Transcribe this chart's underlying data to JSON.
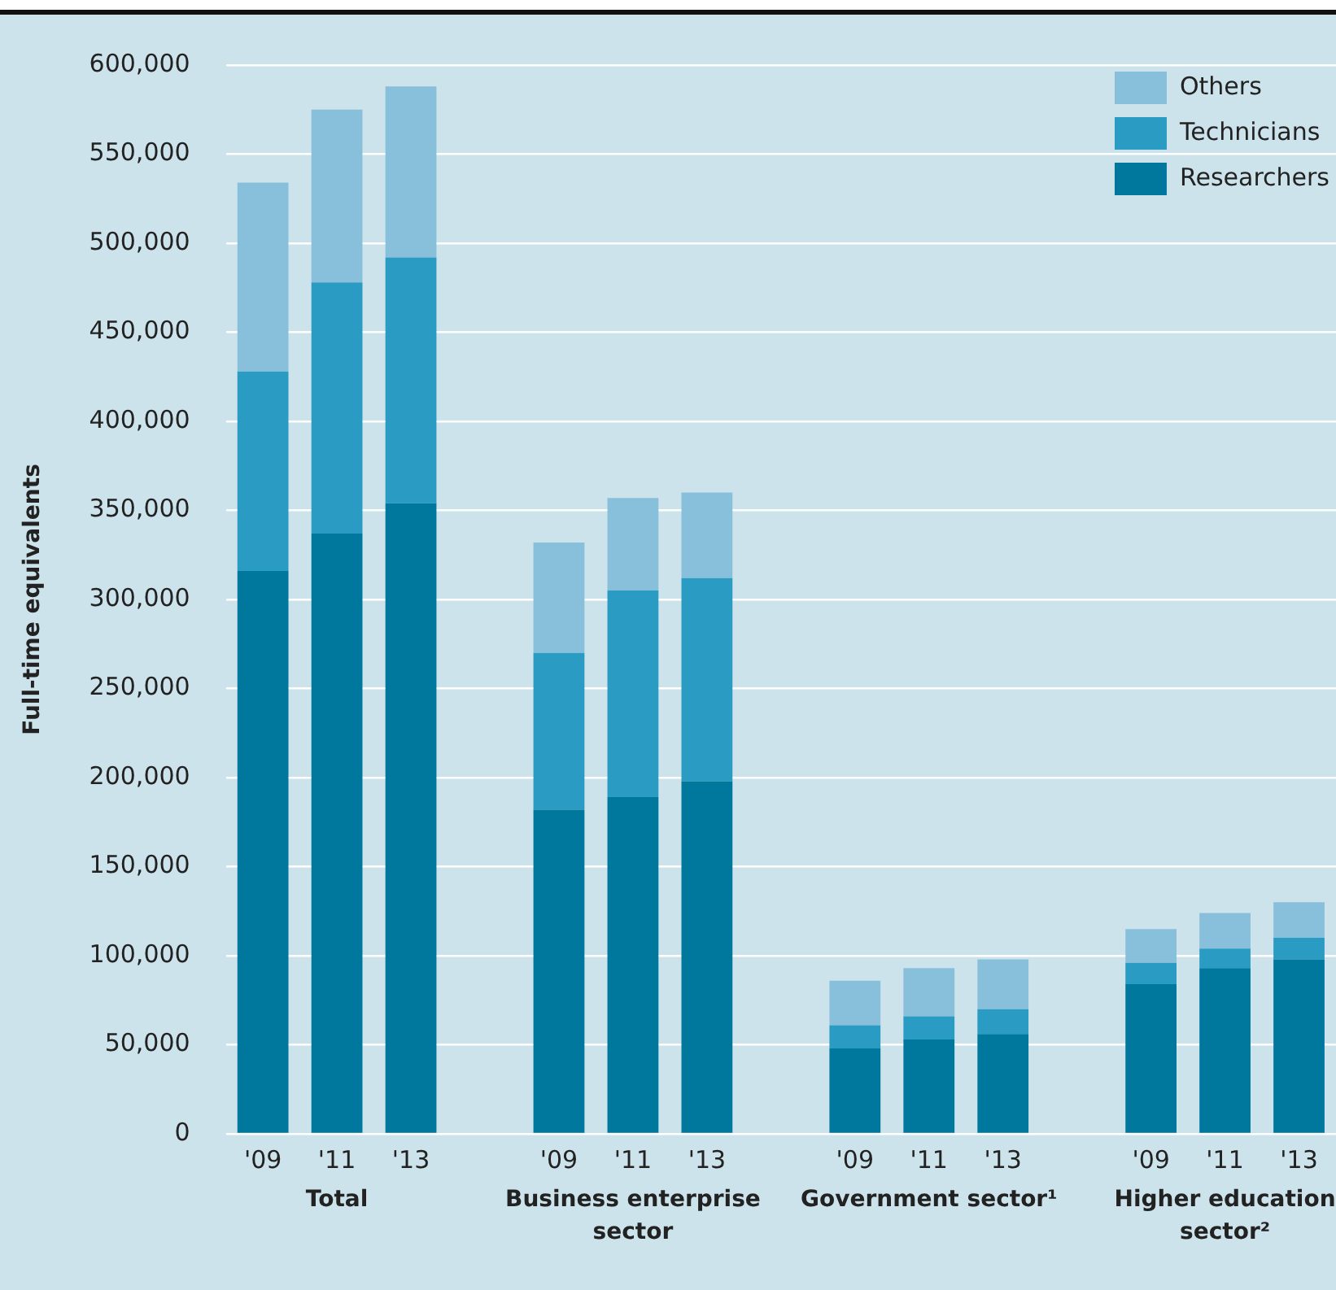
{
  "chart_data": {
    "type": "bar",
    "stacked": true,
    "ylabel": "Full-time equivalents",
    "categories": [
      "'09",
      "'11",
      "'13",
      null,
      "'09",
      "'11",
      "'13",
      null,
      "'09",
      "'11",
      "'13",
      null,
      "'09",
      "'11",
      "'13"
    ],
    "series": [
      {
        "name": "Researchers",
        "color": "#00789e",
        "values": [
          316000,
          337000,
          354000,
          null,
          182000,
          189000,
          198000,
          null,
          48000,
          53000,
          56000,
          null,
          84000,
          93000,
          98000
        ]
      },
      {
        "name": "Technicians",
        "color": "#2a9bc2",
        "values": [
          112000,
          141000,
          138000,
          null,
          88000,
          116000,
          114000,
          null,
          13000,
          13000,
          14000,
          null,
          12000,
          11000,
          12000
        ]
      },
      {
        "name": "Others",
        "color": "#88bfdb",
        "values": [
          106000,
          97000,
          96000,
          null,
          62000,
          52000,
          48000,
          null,
          25000,
          27000,
          28000,
          null,
          19000,
          20000,
          20000
        ]
      }
    ],
    "ylim": [
      0,
      600000
    ],
    "yticks": [
      {
        "value": 0,
        "label": "0"
      },
      {
        "value": 50000,
        "label": "50,000"
      },
      {
        "value": 100000,
        "label": "100,000"
      },
      {
        "value": 150000,
        "label": "150,000"
      },
      {
        "value": 200000,
        "label": "200,000"
      },
      {
        "value": 250000,
        "label": "250,000"
      },
      {
        "value": 300000,
        "label": "300,000"
      },
      {
        "value": 350000,
        "label": "350,000"
      },
      {
        "value": 400000,
        "label": "400,000"
      },
      {
        "value": 450000,
        "label": "450,000"
      },
      {
        "value": 500000,
        "label": "500,000"
      },
      {
        "value": 550000,
        "label": "550,000"
      },
      {
        "value": 600000,
        "label": "600,000"
      }
    ],
    "grid": "y",
    "legend": "top right",
    "annotations": [
      "Total",
      "Business enterprise sector",
      "Government sector¹",
      "Higher education sector²"
    ]
  }
}
